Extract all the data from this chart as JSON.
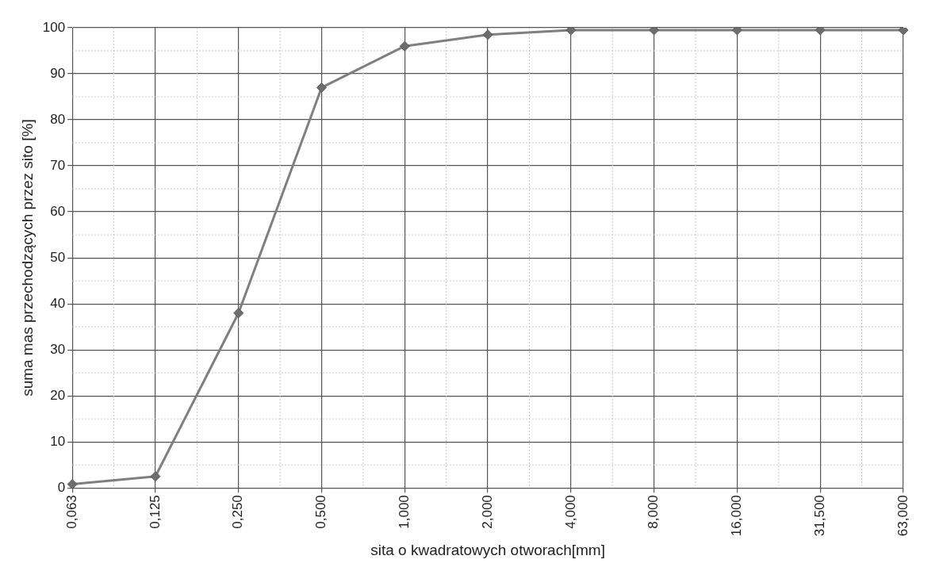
{
  "chart_data": {
    "type": "line",
    "xlabel": "sita o kwadratowych otworach[mm]",
    "ylabel": "suma mas przechodzących przez sito [%]",
    "categories": [
      "0,063",
      "0,125",
      "0,250",
      "0,500",
      "1,000",
      "2,000",
      "4,000",
      "8,000",
      "16,000",
      "31,500",
      "63,000"
    ],
    "series": [
      {
        "color": "#7f7f7f",
        "values": [
          0.8,
          2.5,
          38,
          87,
          96,
          98.5,
          99.5,
          99.5,
          99.5,
          99.5,
          99.5
        ]
      }
    ],
    "ylim": [
      0,
      100
    ],
    "yticks": [
      0,
      10,
      20,
      30,
      40,
      50,
      60,
      70,
      80,
      90,
      100
    ],
    "grid": true,
    "legend": false,
    "marker": "diamond",
    "line_style": "solid"
  }
}
